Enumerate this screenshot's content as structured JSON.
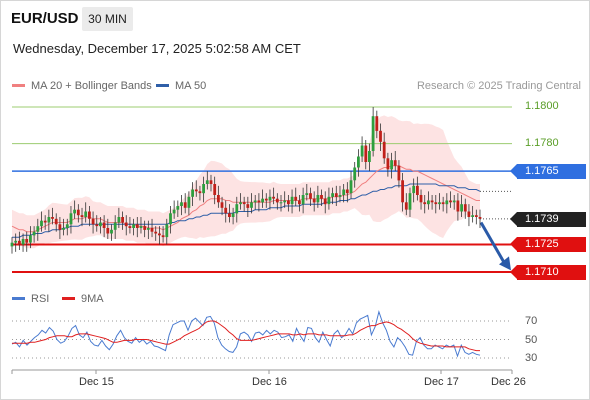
{
  "header": {
    "pair": "EUR/USD",
    "timeframe": "30 MIN"
  },
  "datetime": "Wednesday, December 17, 2025 5:02:58 AM CET",
  "legend": {
    "ma20_label": "MA 20 + Bollinger Bands",
    "ma50_label": "MA 50",
    "copyright": "Research © 2025 Trading Central",
    "ma20_color": "#f08080",
    "ma50_color": "#2f5fa8"
  },
  "levels": {
    "r2": "1.1800",
    "r1": "1.1780",
    "pivot": "1.1765",
    "last": "1.1739",
    "s1": "1.1725",
    "s2": "1.1710"
  },
  "rsi_legend": {
    "rsi_label": "RSI",
    "ma_label": "9MA",
    "rsi_color": "#4a7bd0",
    "ma_color": "#e02020"
  },
  "rsi_ticks": [
    "70",
    "50",
    "30"
  ],
  "x_ticks": [
    "Dec 15",
    "Dec 16",
    "Dec 17",
    "Dec 26"
  ],
  "chart_data": {
    "type": "candlestick",
    "price_range": [
      1.1705,
      1.1805
    ],
    "resistance_levels": [
      1.18,
      1.178,
      1.1765
    ],
    "support_levels": [
      1.1725,
      1.171
    ],
    "last_price": 1.1739,
    "forecast": "down towards 1.1710",
    "closes": [
      1.1726,
      1.1727,
      1.1725,
      1.1728,
      1.1726,
      1.173,
      1.1732,
      1.1735,
      1.1738,
      1.1737,
      1.174,
      1.1739,
      1.1736,
      1.1733,
      1.1734,
      1.1736,
      1.1742,
      1.1744,
      1.1741,
      1.174,
      1.1743,
      1.1739,
      1.1736,
      1.1735,
      1.1737,
      1.1734,
      1.1731,
      1.1733,
      1.1737,
      1.174,
      1.1737,
      1.1735,
      1.1734,
      1.1736,
      1.1734,
      1.1735,
      1.1733,
      1.1734,
      1.1732,
      1.1731,
      1.173,
      1.1729,
      1.1736,
      1.1742,
      1.1744,
      1.1746,
      1.1748,
      1.1745,
      1.1751,
      1.1755,
      1.1754,
      1.1753,
      1.1758,
      1.176,
      1.1758,
      1.1752,
      1.1748,
      1.1745,
      1.1742,
      1.174,
      1.1742,
      1.1747,
      1.1748,
      1.1747,
      1.1745,
      1.1748,
      1.1749,
      1.1748,
      1.175,
      1.1749,
      1.1751,
      1.175,
      1.1748,
      1.1748,
      1.1749,
      1.1747,
      1.1751,
      1.1749,
      1.1747,
      1.1752,
      1.1753,
      1.175,
      1.1748,
      1.1752,
      1.175,
      1.1747,
      1.1751,
      1.1753,
      1.1751,
      1.1752,
      1.1755,
      1.1753,
      1.176,
      1.1767,
      1.1773,
      1.1779,
      1.177,
      1.1776,
      1.1795,
      1.1787,
      1.1781,
      1.1772,
      1.1766,
      1.1771,
      1.1768,
      1.176,
      1.1748,
      1.1744,
      1.1753,
      1.1757,
      1.1752,
      1.1748,
      1.1747,
      1.1749,
      1.1748,
      1.1747,
      1.1748,
      1.1747,
      1.1749,
      1.1748,
      1.1749,
      1.1743,
      1.1747,
      1.1743,
      1.174,
      1.1741,
      1.174,
      1.1739
    ],
    "ma20": [
      1.1735,
      1.1734,
      1.1733,
      1.1733,
      1.1732,
      1.1732,
      1.1732,
      1.1733,
      1.1734,
      1.1735,
      1.1736,
      1.1737,
      1.1737,
      1.1737,
      1.1737,
      1.1737,
      1.1738,
      1.1739,
      1.1739,
      1.1739,
      1.174,
      1.174,
      1.1739,
      1.1739,
      1.1739,
      1.1738,
      1.1737,
      1.1737,
      1.1737,
      1.1737,
      1.1737,
      1.1736,
      1.1736,
      1.1736,
      1.1735,
      1.1735,
      1.1735,
      1.1734,
      1.1734,
      1.1734,
      1.1734,
      1.1733,
      1.1734,
      1.1735,
      1.1736,
      1.1737,
      1.1739,
      1.174,
      1.1741,
      1.1743,
      1.1744,
      1.1746,
      1.1747,
      1.1749,
      1.175,
      1.175,
      1.175,
      1.175,
      1.1749,
      1.1749,
      1.1748,
      1.1748,
      1.1748,
      1.1748,
      1.1748,
      1.1748,
      1.1748,
      1.1748,
      1.1748,
      1.1748,
      1.1748,
      1.1749,
      1.1749,
      1.1749,
      1.1749,
      1.1749,
      1.1749,
      1.1749,
      1.1749,
      1.175,
      1.175,
      1.175,
      1.175,
      1.175,
      1.175,
      1.175,
      1.175,
      1.1751,
      1.1751,
      1.1751,
      1.1752,
      1.1752,
      1.1753,
      1.1754,
      1.1756,
      1.1758,
      1.1759,
      1.1761,
      1.1763,
      1.1765,
      1.1766,
      1.1767,
      1.1767,
      1.1768,
      1.1768,
      1.1768,
      1.1767,
      1.1766,
      1.1766,
      1.1765,
      1.1765,
      1.1764,
      1.1763,
      1.1762,
      1.1761,
      1.176,
      1.1759,
      1.1758,
      1.1757,
      1.1756,
      1.1755,
      1.1754,
      1.1753,
      1.1752,
      1.1751,
      1.175,
      1.1749,
      1.1749
    ],
    "ma50": [
      1.1729,
      1.1729,
      1.1729,
      1.173,
      1.173,
      1.173,
      1.1731,
      1.1731,
      1.1731,
      1.1732,
      1.1732,
      1.1733,
      1.1733,
      1.1733,
      1.1734,
      1.1734,
      1.1735,
      1.1735,
      1.1735,
      1.1736,
      1.1736,
      1.1736,
      1.1736,
      1.1736,
      1.1736,
      1.1736,
      1.1736,
      1.1736,
      1.1736,
      1.1736,
      1.1736,
      1.1736,
      1.1736,
      1.1736,
      1.1736,
      1.1736,
      1.1736,
      1.1736,
      1.1736,
      1.1736,
      1.1736,
      1.1736,
      1.1736,
      1.1737,
      1.1737,
      1.1738,
      1.1738,
      1.1738,
      1.1739,
      1.1739,
      1.174,
      1.174,
      1.1741,
      1.1741,
      1.1742,
      1.1742,
      1.1742,
      1.1742,
      1.1742,
      1.1742,
      1.1742,
      1.1743,
      1.1743,
      1.1743,
      1.1743,
      1.1743,
      1.1744,
      1.1744,
      1.1744,
      1.1744,
      1.1745,
      1.1745,
      1.1745,
      1.1745,
      1.1746,
      1.1746,
      1.1746,
      1.1746,
      1.1746,
      1.1747,
      1.1747,
      1.1747,
      1.1747,
      1.1747,
      1.1747,
      1.1748,
      1.1748,
      1.1748,
      1.1748,
      1.1749,
      1.1749,
      1.1749,
      1.175,
      1.175,
      1.1751,
      1.1752,
      1.1752,
      1.1753,
      1.1754,
      1.1754,
      1.1755,
      1.1755,
      1.1756,
      1.1756,
      1.1757,
      1.1757,
      1.1757,
      1.1757,
      1.1758,
      1.1758,
      1.1758,
      1.1758,
      1.1758,
      1.1758,
      1.1758,
      1.1758,
      1.1757,
      1.1757,
      1.1757,
      1.1757,
      1.1757,
      1.1756,
      1.1756,
      1.1756,
      1.1755,
      1.1755,
      1.1755,
      1.1754
    ],
    "rsi_range": [
      25,
      80
    ],
    "rsi": [
      45,
      47,
      42,
      49,
      44,
      48,
      52,
      55,
      60,
      57,
      63,
      59,
      50,
      46,
      48,
      54,
      62,
      65,
      55,
      52,
      58,
      48,
      44,
      43,
      49,
      43,
      39,
      45,
      54,
      60,
      52,
      48,
      46,
      52,
      47,
      50,
      45,
      48,
      43,
      42,
      40,
      38,
      55,
      66,
      68,
      70,
      70,
      60,
      70,
      73,
      69,
      65,
      74,
      75,
      68,
      52,
      44,
      40,
      37,
      36,
      42,
      56,
      58,
      55,
      48,
      57,
      58,
      55,
      60,
      56,
      60,
      58,
      52,
      53,
      55,
      48,
      62,
      54,
      48,
      63,
      62,
      52,
      47,
      58,
      50,
      43,
      56,
      60,
      52,
      55,
      62,
      56,
      68,
      72,
      74,
      76,
      55,
      64,
      80,
      68,
      60,
      48,
      42,
      52,
      48,
      42,
      34,
      33,
      48,
      52,
      44,
      40,
      40,
      44,
      42,
      40,
      44,
      42,
      44,
      32,
      44,
      36,
      34,
      36,
      34,
      33
    ],
    "rsi_ma": [
      46,
      46,
      46,
      46,
      46,
      47,
      47,
      48,
      49,
      50,
      52,
      53,
      54,
      54,
      54,
      53,
      53,
      55,
      56,
      56,
      56,
      55,
      54,
      53,
      52,
      51,
      49,
      47,
      47,
      48,
      49,
      49,
      49,
      50,
      50,
      50,
      50,
      49,
      48,
      47,
      46,
      45,
      45,
      47,
      49,
      51,
      54,
      56,
      58,
      60,
      62,
      66,
      69,
      70,
      70,
      68,
      65,
      62,
      58,
      55,
      51,
      49,
      49,
      49,
      49,
      50,
      51,
      52,
      53,
      54,
      55,
      56,
      56,
      56,
      56,
      55,
      55,
      56,
      55,
      56,
      56,
      56,
      55,
      55,
      55,
      54,
      54,
      54,
      54,
      54,
      55,
      55,
      57,
      60,
      62,
      64,
      65,
      65,
      67,
      68,
      69,
      68,
      66,
      63,
      61,
      58,
      55,
      51,
      48,
      46,
      45,
      44,
      43,
      43,
      43,
      43,
      42,
      42,
      42,
      42,
      42,
      42,
      40,
      39,
      38,
      38
    ],
    "x_tick_labels": [
      "Dec 15",
      "Dec 16",
      "Dec 17",
      "Dec 26"
    ]
  }
}
